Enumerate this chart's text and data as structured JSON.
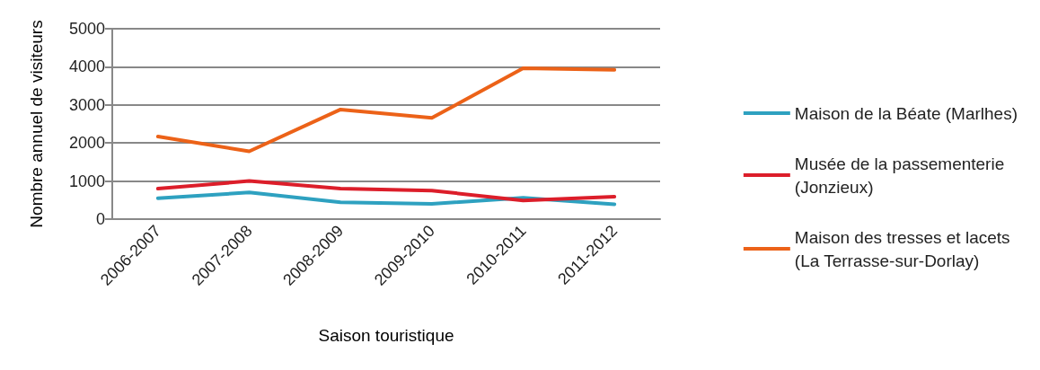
{
  "chart_data": {
    "type": "line",
    "xlabel": "Saison touristique",
    "ylabel": "Nombre annuel de visiteurs",
    "categories": [
      "2006-2007",
      "2007-2008",
      "2008-2009",
      "2009-2010",
      "2010-2011",
      "2011-2012"
    ],
    "series": [
      {
        "name": "Maison de la Béate (Marlhes)",
        "color": "#2ea1c0",
        "values": [
          550,
          700,
          440,
          400,
          560,
          390
        ]
      },
      {
        "name": "Musée de la passementerie\n(Jonzieux)",
        "color": "#dc1e2a",
        "values": [
          800,
          1000,
          800,
          750,
          490,
          590
        ]
      },
      {
        "name": "Maison des tresses et lacets\n(La Terrasse-sur-Dorlay)",
        "color": "#ec6218",
        "values": [
          2170,
          1780,
          2880,
          2660,
          3960,
          3920
        ]
      }
    ],
    "ylim": [
      0,
      5000
    ],
    "yticks": [
      0,
      1000,
      2000,
      3000,
      4000,
      5000
    ],
    "grid": "y",
    "legend": "right",
    "marker": "none",
    "line_style": "solid"
  }
}
